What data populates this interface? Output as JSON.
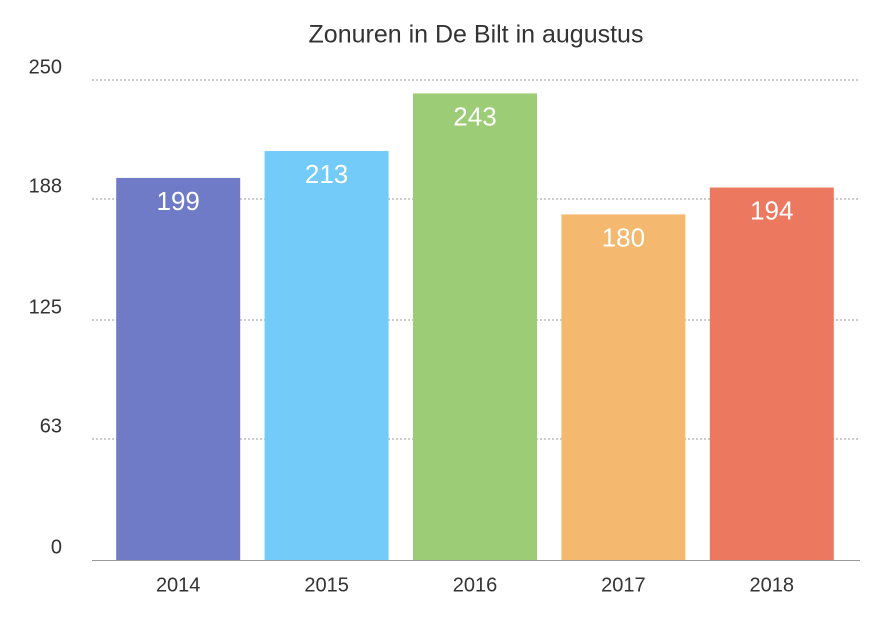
{
  "chart_data": {
    "type": "bar",
    "title": "Zonuren in De Bilt in augustus",
    "categories": [
      "2014",
      "2015",
      "2016",
      "2017",
      "2018"
    ],
    "values": [
      199,
      213,
      243,
      180,
      194
    ],
    "colors": [
      "#6f7bc7",
      "#72cbf9",
      "#9ccc76",
      "#f4b96f",
      "#ec7860"
    ],
    "ylim": [
      0,
      250
    ],
    "yticks": [
      0,
      63,
      125,
      188,
      250
    ],
    "grid": true
  }
}
